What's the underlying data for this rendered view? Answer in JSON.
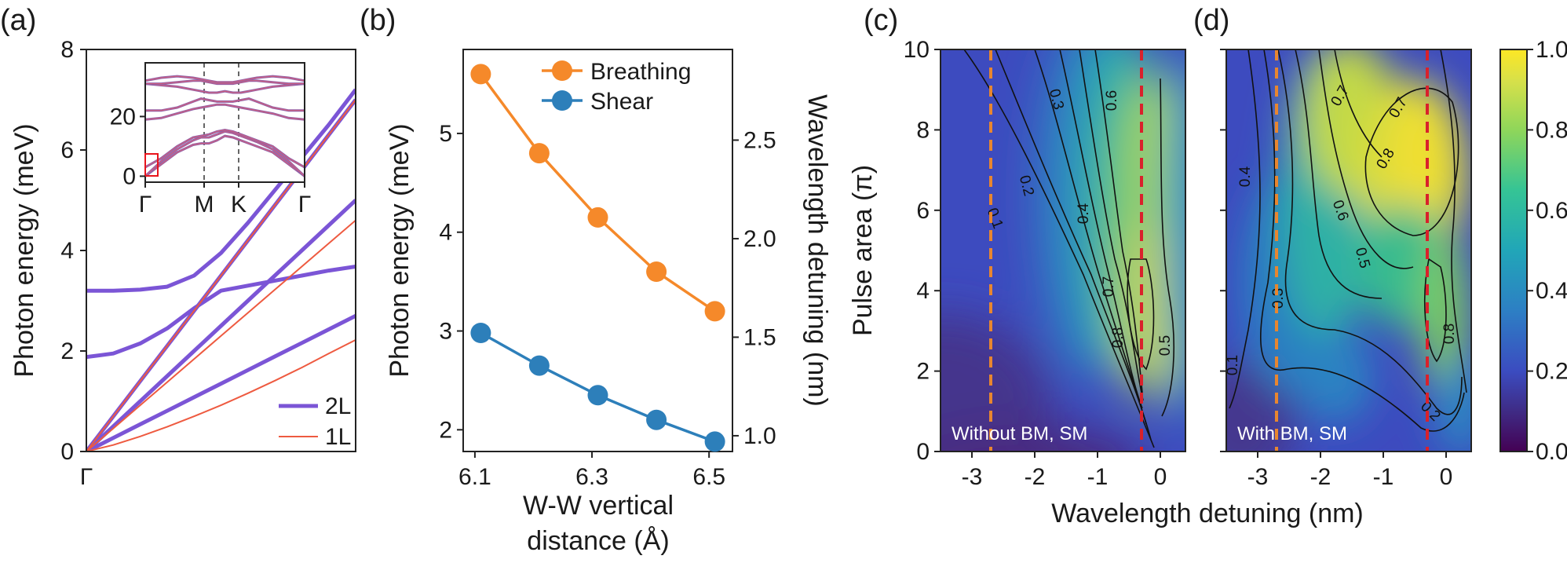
{
  "panels": {
    "a": {
      "label": "(a)"
    },
    "b": {
      "label": "(b)"
    },
    "c": {
      "label": "(c)"
    },
    "d": {
      "label": "(d)"
    }
  },
  "chart_data": [
    {
      "id": "a",
      "type": "line",
      "title": "",
      "ylabel": "Photon energy (meV)",
      "xlabel": "",
      "x_ticks": [
        "Γ"
      ],
      "yticks": [
        "0",
        "2",
        "4",
        "6",
        "8"
      ],
      "ylim": [
        0,
        8
      ],
      "x": [
        0,
        0.1,
        0.2,
        0.3,
        0.4,
        0.5,
        0.6,
        0.7,
        0.8,
        0.9,
        1.0
      ],
      "series": [
        {
          "name": "2L",
          "group": "2L",
          "color": "#7b55d6",
          "values": [
            0,
            0.27,
            0.54,
            0.81,
            1.08,
            1.35,
            1.62,
            1.89,
            2.16,
            2.43,
            2.7
          ]
        },
        {
          "name": "2L",
          "group": "2L",
          "color": "#7b55d6",
          "values": [
            0,
            0.5,
            1.0,
            1.5,
            2.0,
            2.5,
            3.0,
            3.5,
            4.0,
            4.5,
            5.0
          ]
        },
        {
          "name": "2L",
          "group": "2L",
          "color": "#7b55d6",
          "values": [
            0,
            0.7,
            1.4,
            2.1,
            2.8,
            3.5,
            4.2,
            4.9,
            5.6,
            6.3,
            7.0
          ]
        },
        {
          "name": "2L",
          "group": "2L",
          "color": "#7b55d6",
          "values": [
            1.88,
            1.95,
            2.15,
            2.45,
            2.85,
            3.2,
            3.3,
            3.4,
            3.5,
            3.6,
            3.68
          ]
        },
        {
          "name": "2L",
          "group": "2L",
          "color": "#7b55d6",
          "values": [
            3.2,
            3.2,
            3.22,
            3.28,
            3.5,
            3.95,
            4.55,
            5.2,
            5.85,
            6.5,
            7.2
          ]
        },
        {
          "name": "1L",
          "group": "1L",
          "color": "#ee5a40",
          "values": [
            0,
            0.13,
            0.3,
            0.49,
            0.7,
            0.92,
            1.16,
            1.41,
            1.67,
            1.95,
            2.22
          ]
        },
        {
          "name": "1L",
          "group": "1L",
          "color": "#ee5a40",
          "values": [
            0,
            0.46,
            0.92,
            1.38,
            1.84,
            2.3,
            2.76,
            3.22,
            3.68,
            4.14,
            4.6
          ]
        },
        {
          "name": "1L",
          "group": "1L",
          "color": "#ee5a40",
          "values": [
            0,
            0.7,
            1.4,
            2.1,
            2.8,
            3.5,
            4.2,
            4.9,
            5.6,
            6.3,
            7.0
          ]
        }
      ],
      "legend": [
        {
          "label": "2L",
          "color": "#7b55d6"
        },
        {
          "label": "1L",
          "color": "#ee5a40"
        }
      ],
      "legend_position": "bottom-right",
      "inset": {
        "type": "line",
        "x_ticks": [
          "Γ",
          "M",
          "K",
          "Γ"
        ],
        "yticks": [
          "0",
          "20"
        ],
        "ylim": [
          -2,
          38
        ],
        "x": [
          0,
          0.1,
          0.2,
          0.3,
          0.35,
          0.4,
          0.45,
          0.5,
          0.55,
          0.6,
          0.65,
          0.7,
          0.8,
          0.9,
          1.0
        ],
        "series": [
          {
            "name": "b1",
            "values": [
              0,
              4,
              8,
              10.5,
              11,
              11,
              12,
              13.5,
              13,
              12,
              11,
              10,
              8,
              4,
              0
            ]
          },
          {
            "name": "b2",
            "values": [
              0,
              5,
              9,
              12,
              13,
              13,
              14,
              15,
              14.5,
              13.5,
              12.5,
              11.5,
              9,
              5,
              0
            ]
          },
          {
            "name": "b3",
            "values": [
              3,
              6,
              10,
              13,
              13.5,
              14,
              15,
              15.5,
              15,
              14,
              13,
              12,
              10,
              6,
              3
            ]
          },
          {
            "name": "b4",
            "values": [
              19,
              19.5,
              21,
              22.5,
              23,
              23.5,
              24,
              24,
              23.5,
              23,
              22.5,
              22,
              21,
              19.5,
              19
            ]
          },
          {
            "name": "b5",
            "values": [
              22,
              22,
              23,
              25,
              26,
              25.5,
              25,
              25,
              25,
              25.5,
              26,
              25,
              23,
              22,
              22
            ]
          },
          {
            "name": "b6",
            "values": [
              31,
              30.5,
              30,
              29,
              28.5,
              28,
              28,
              28.5,
              28,
              28,
              28.5,
              29,
              30,
              30.5,
              31
            ]
          },
          {
            "name": "b7",
            "values": [
              31,
              31,
              31.5,
              32,
              32,
              31.5,
              31,
              31,
              31,
              31.5,
              32,
              32,
              31.5,
              31,
              31
            ]
          },
          {
            "name": "b8",
            "values": [
              32,
              33,
              33.5,
              33,
              32.5,
              32,
              31.5,
              31.5,
              31.5,
              32,
              32.5,
              33,
              33.5,
              33,
              32
            ]
          }
        ]
      }
    },
    {
      "id": "b",
      "type": "line",
      "title": "",
      "xlabel": "W-W vertical distance (Å)",
      "xlabel_lines": [
        "W-W vertical",
        "distance (Å)"
      ],
      "ylabel": "Photon energy (meV)",
      "y2label": "Wavelength detuning (nm)",
      "x": [
        6.11,
        6.21,
        6.31,
        6.41,
        6.51
      ],
      "xlim": [
        6.08,
        6.54
      ],
      "xticks": [
        "6.1",
        "6.3",
        "6.5"
      ],
      "ylim": [
        1.78,
        5.85
      ],
      "yticks": [
        "2",
        "3",
        "4",
        "5"
      ],
      "y2lim": [
        0.92,
        2.96
      ],
      "y2ticks": [
        "1.0",
        "1.5",
        "2.0",
        "2.5"
      ],
      "series": [
        {
          "name": "Breathing",
          "color": "#f5892a",
          "values": [
            5.6,
            4.8,
            4.15,
            3.6,
            3.2
          ]
        },
        {
          "name": "Shear",
          "color": "#2d7fba",
          "values": [
            2.98,
            2.65,
            2.35,
            2.1,
            1.88
          ]
        }
      ],
      "legend_position": "top-right"
    },
    {
      "id": "c",
      "type": "heatmap",
      "title": "",
      "annotation": "Without BM, SM",
      "xlabel": "Wavelength detuning (nm)",
      "ylabel": "Pulse area (π)",
      "xlim": [
        -3.5,
        0.4
      ],
      "ylim": [
        0,
        10
      ],
      "xticks": [
        "-3",
        "-2",
        "-1",
        "0"
      ],
      "yticks": [
        "0",
        "2",
        "4",
        "6",
        "8",
        "10"
      ],
      "dashed_lines": [
        {
          "x": -2.7,
          "color": "#e8862f"
        },
        {
          "x": -0.3,
          "color": "#d9212b"
        }
      ],
      "contour_labels": [
        "0.1",
        "0.2",
        "0.3",
        "0.4",
        "0.6",
        "0.7",
        "0.8",
        "0.5"
      ]
    },
    {
      "id": "d",
      "type": "heatmap",
      "title": "",
      "annotation": "With BM, SM",
      "xlabel": "Wavelength detuning (nm)",
      "xlim": [
        -3.5,
        0.4
      ],
      "ylim": [
        0,
        10
      ],
      "xticks": [
        "-3",
        "-2",
        "-1",
        "0"
      ],
      "dashed_lines": [
        {
          "x": -2.7,
          "color": "#e8862f"
        },
        {
          "x": -0.3,
          "color": "#d9212b"
        }
      ],
      "contour_labels": [
        "0.7",
        "0.7",
        "0.8",
        "0.4",
        "0.6",
        "0.5",
        "0.3",
        "0.1",
        "0.8",
        "0.2"
      ],
      "colorbar": {
        "min": 0,
        "max": 1,
        "ticks": [
          "0.0",
          "0.2",
          "0.4",
          "0.6",
          "0.8",
          "1.0"
        ],
        "colormap": "viridis"
      }
    }
  ]
}
